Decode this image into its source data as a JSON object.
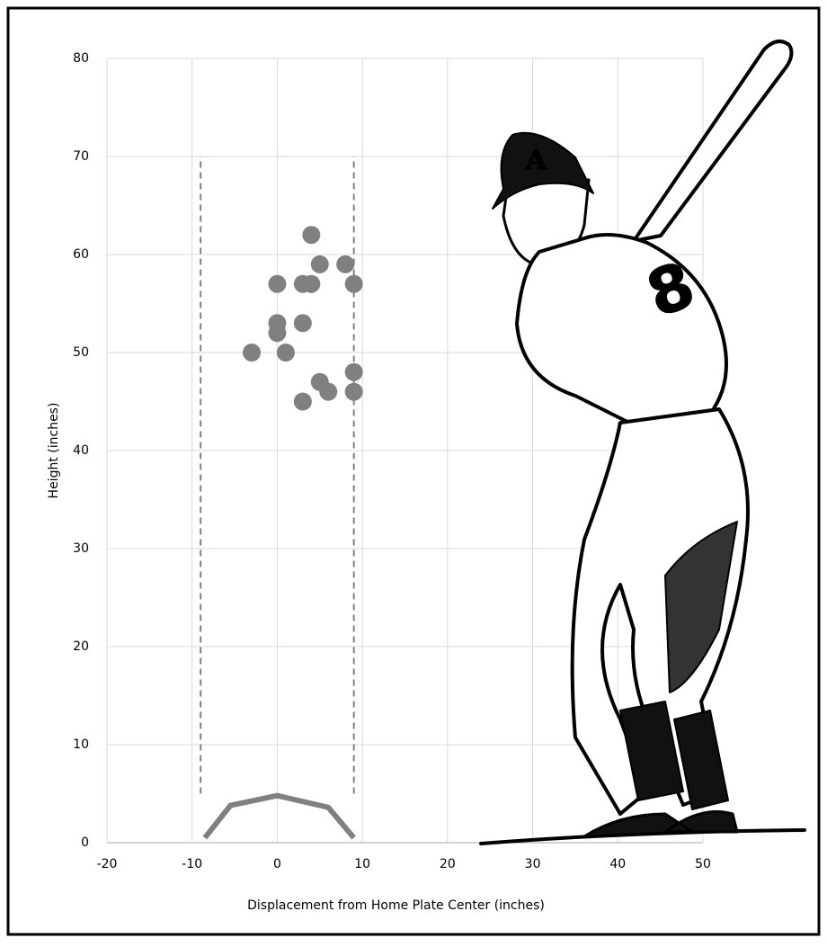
{
  "chart_data": {
    "type": "scatter",
    "x_label": "Displacement from Home Plate Center  (inches)",
    "y_label": "Height (inches)",
    "xlim": [
      -20,
      50
    ],
    "xticks": [
      -20,
      -10,
      0,
      10,
      20,
      30,
      40,
      50
    ],
    "ylim": [
      0,
      80
    ],
    "yticks": [
      0,
      10,
      20,
      30,
      40,
      50,
      60,
      70,
      80
    ],
    "grid": true,
    "series": [
      {
        "style": "markers",
        "color": "#808080",
        "x": [
          4,
          5,
          8,
          0,
          3,
          4,
          9,
          0,
          3,
          0,
          -3,
          1,
          9,
          5,
          6,
          9,
          3
        ],
        "values": [
          62,
          59,
          59,
          57,
          57,
          57,
          57,
          53,
          53,
          52,
          50,
          50,
          48,
          47,
          46,
          46,
          45
        ]
      },
      {
        "style": "dashed",
        "color": "#808080",
        "x": [
          -9,
          -9
        ],
        "values": [
          5,
          70
        ]
      },
      {
        "style": "dashed",
        "color": "#808080",
        "x": [
          9,
          9
        ],
        "values": [
          5,
          70
        ]
      },
      {
        "style": "solid",
        "color": "#808080",
        "x": [
          -8.5,
          -5.5,
          0,
          6,
          9
        ],
        "values": [
          0.5,
          3.8,
          4.8,
          3.6,
          0.5
        ]
      }
    ]
  }
}
